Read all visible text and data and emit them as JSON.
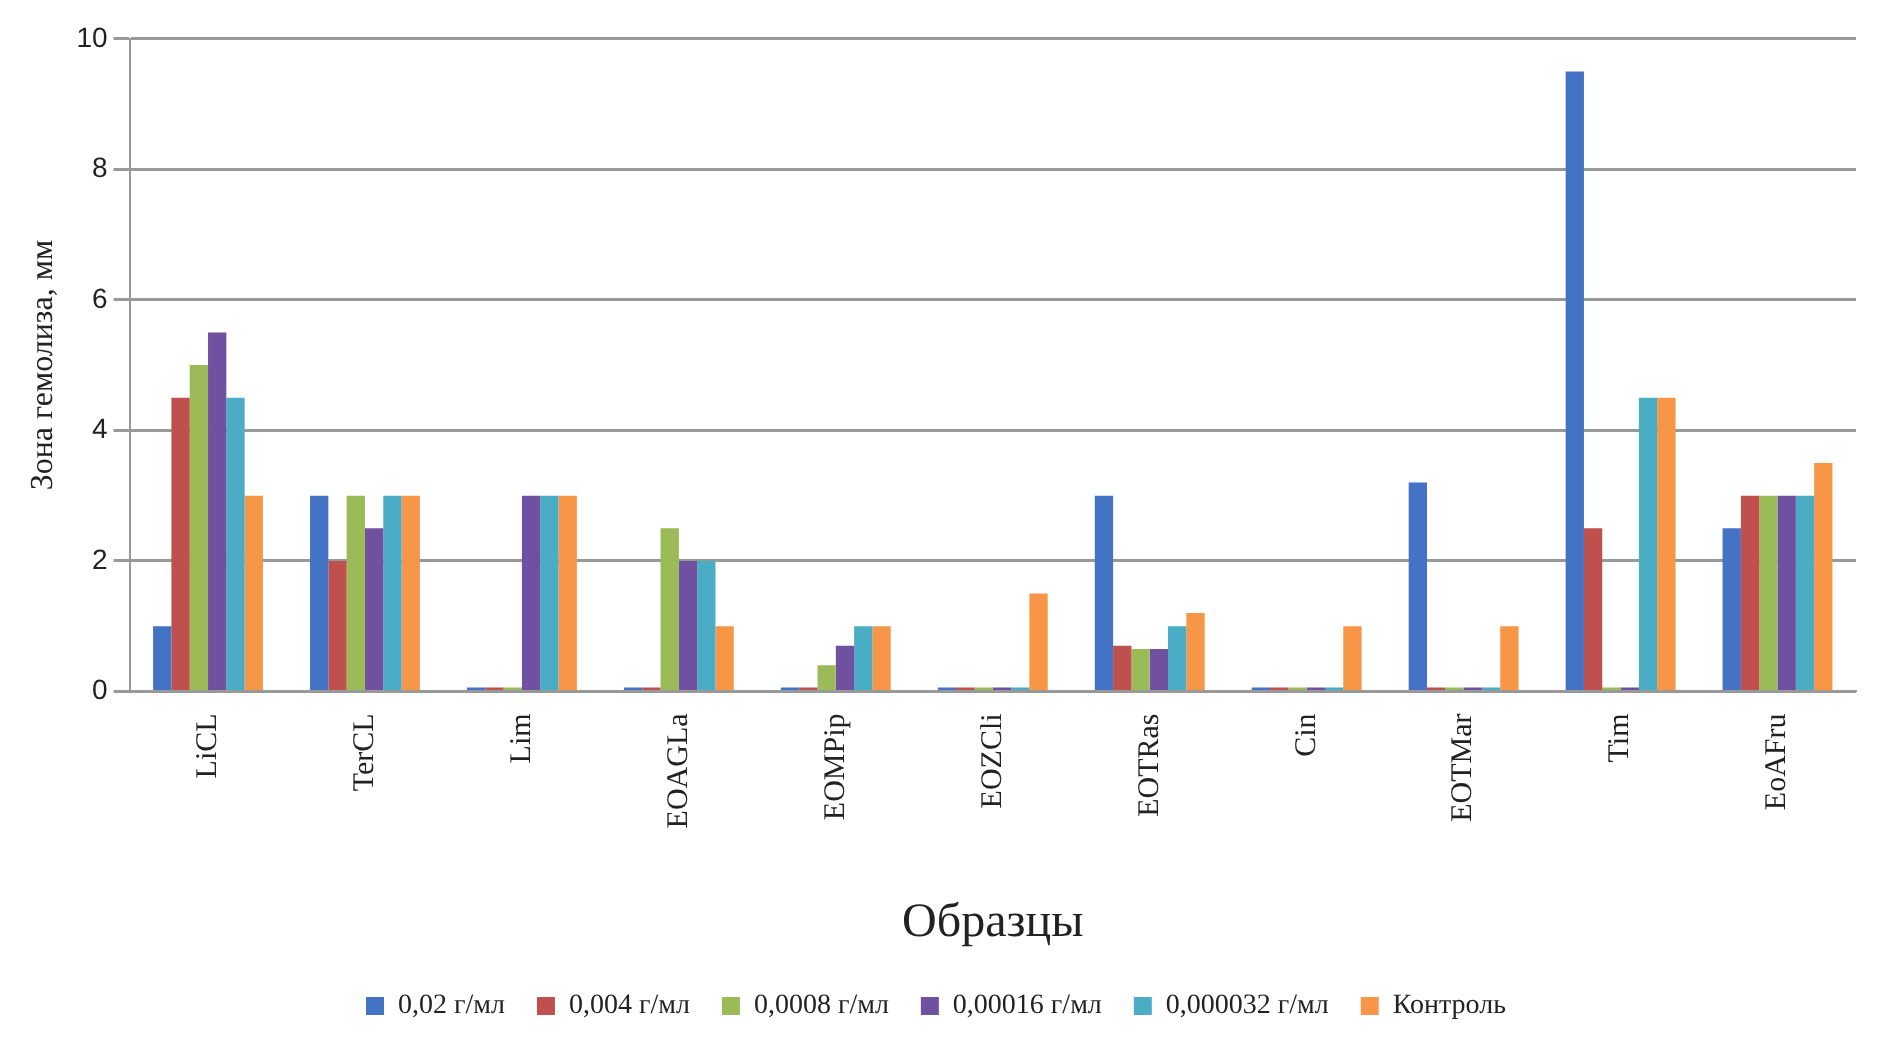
{
  "chart_data": {
    "type": "bar",
    "xlabel": "Образцы",
    "ylabel": "Зона гемолиза, мм",
    "categories": [
      "LiCL",
      "TerCL",
      "Lim",
      "EOAGLa",
      "EOMPip",
      "EOZCli",
      "EOTRas",
      "Cin",
      "EOTMar",
      "Tim",
      "EoAFru"
    ],
    "series": [
      {
        "name": "0,02 г/мл",
        "color": "#4472c4",
        "values": [
          1,
          3,
          0,
          0,
          0,
          0,
          3,
          0,
          3.2,
          9.5,
          2.5
        ]
      },
      {
        "name": "0,004 г/мл",
        "color": "#c0504d",
        "values": [
          4.5,
          2,
          0,
          0,
          0,
          0,
          0.7,
          0,
          0,
          2.5,
          3
        ]
      },
      {
        "name": "0,0008 г/мл",
        "color": "#9bbb59",
        "values": [
          5,
          3,
          0,
          2.5,
          0.4,
          0,
          0.65,
          0,
          0,
          0,
          3
        ]
      },
      {
        "name": "0,00016 г/мл",
        "color": "#7050a0",
        "values": [
          5.5,
          2.5,
          3,
          2,
          0.7,
          0,
          0.65,
          0,
          0,
          0,
          3
        ]
      },
      {
        "name": "0,000032 г/мл",
        "color": "#4bacc6",
        "values": [
          4.5,
          3,
          3,
          2,
          1,
          0,
          1,
          0,
          0,
          4.5,
          3
        ]
      },
      {
        "name": "Контроль",
        "color": "#f79646",
        "values": [
          3,
          3,
          3,
          1,
          1,
          1.5,
          1.2,
          1,
          1,
          4.5,
          3.5
        ]
      }
    ],
    "ylim": [
      0,
      10
    ],
    "yticks": [
      0,
      2,
      4,
      6,
      8,
      10
    ],
    "grid": "y",
    "legend": "bottom"
  }
}
